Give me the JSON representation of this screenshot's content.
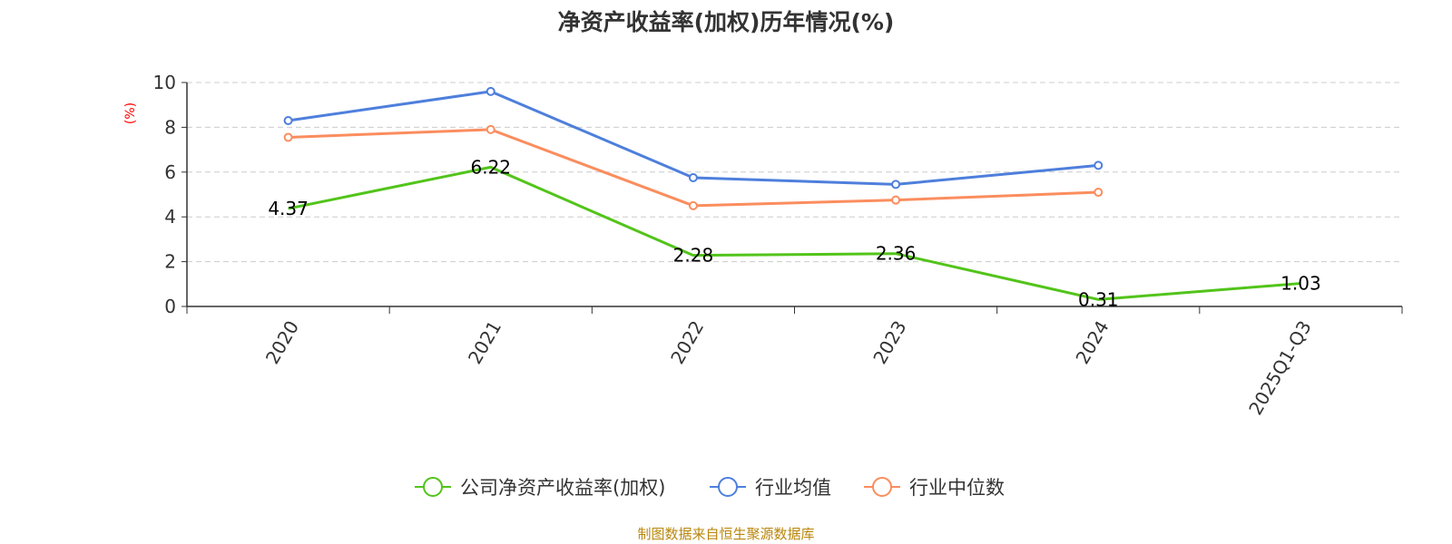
{
  "chart_data": {
    "type": "line",
    "title": "净资产收益率(加权)历年情况(%)",
    "ylabel": "(%)",
    "xlabel": "",
    "categories": [
      "2020",
      "2021",
      "2022",
      "2023",
      "2024",
      "2025Q1-Q3"
    ],
    "ylim": [
      0,
      10
    ],
    "yticks": [
      0,
      2,
      4,
      6,
      8,
      10
    ],
    "grid": true,
    "legend_position": "bottom-center",
    "series": [
      {
        "name": "公司净资产收益率(加权)",
        "color": "#52c41a",
        "values": [
          4.37,
          6.22,
          2.28,
          2.36,
          0.31,
          1.03
        ],
        "labels": [
          "4.37",
          "6.22",
          "2.28",
          "2.36",
          "0.31",
          "1.03"
        ],
        "show_markers": false
      },
      {
        "name": "行业均值",
        "color": "#4e7fdc",
        "values": [
          8.3,
          9.6,
          5.75,
          5.45,
          6.3,
          null
        ],
        "show_markers": true
      },
      {
        "name": "行业中位数",
        "color": "#fb8d5e",
        "values": [
          7.55,
          7.9,
          4.5,
          4.75,
          5.1,
          null
        ],
        "show_markers": true
      }
    ]
  },
  "source": "制图数据来自恒生聚源数据库"
}
